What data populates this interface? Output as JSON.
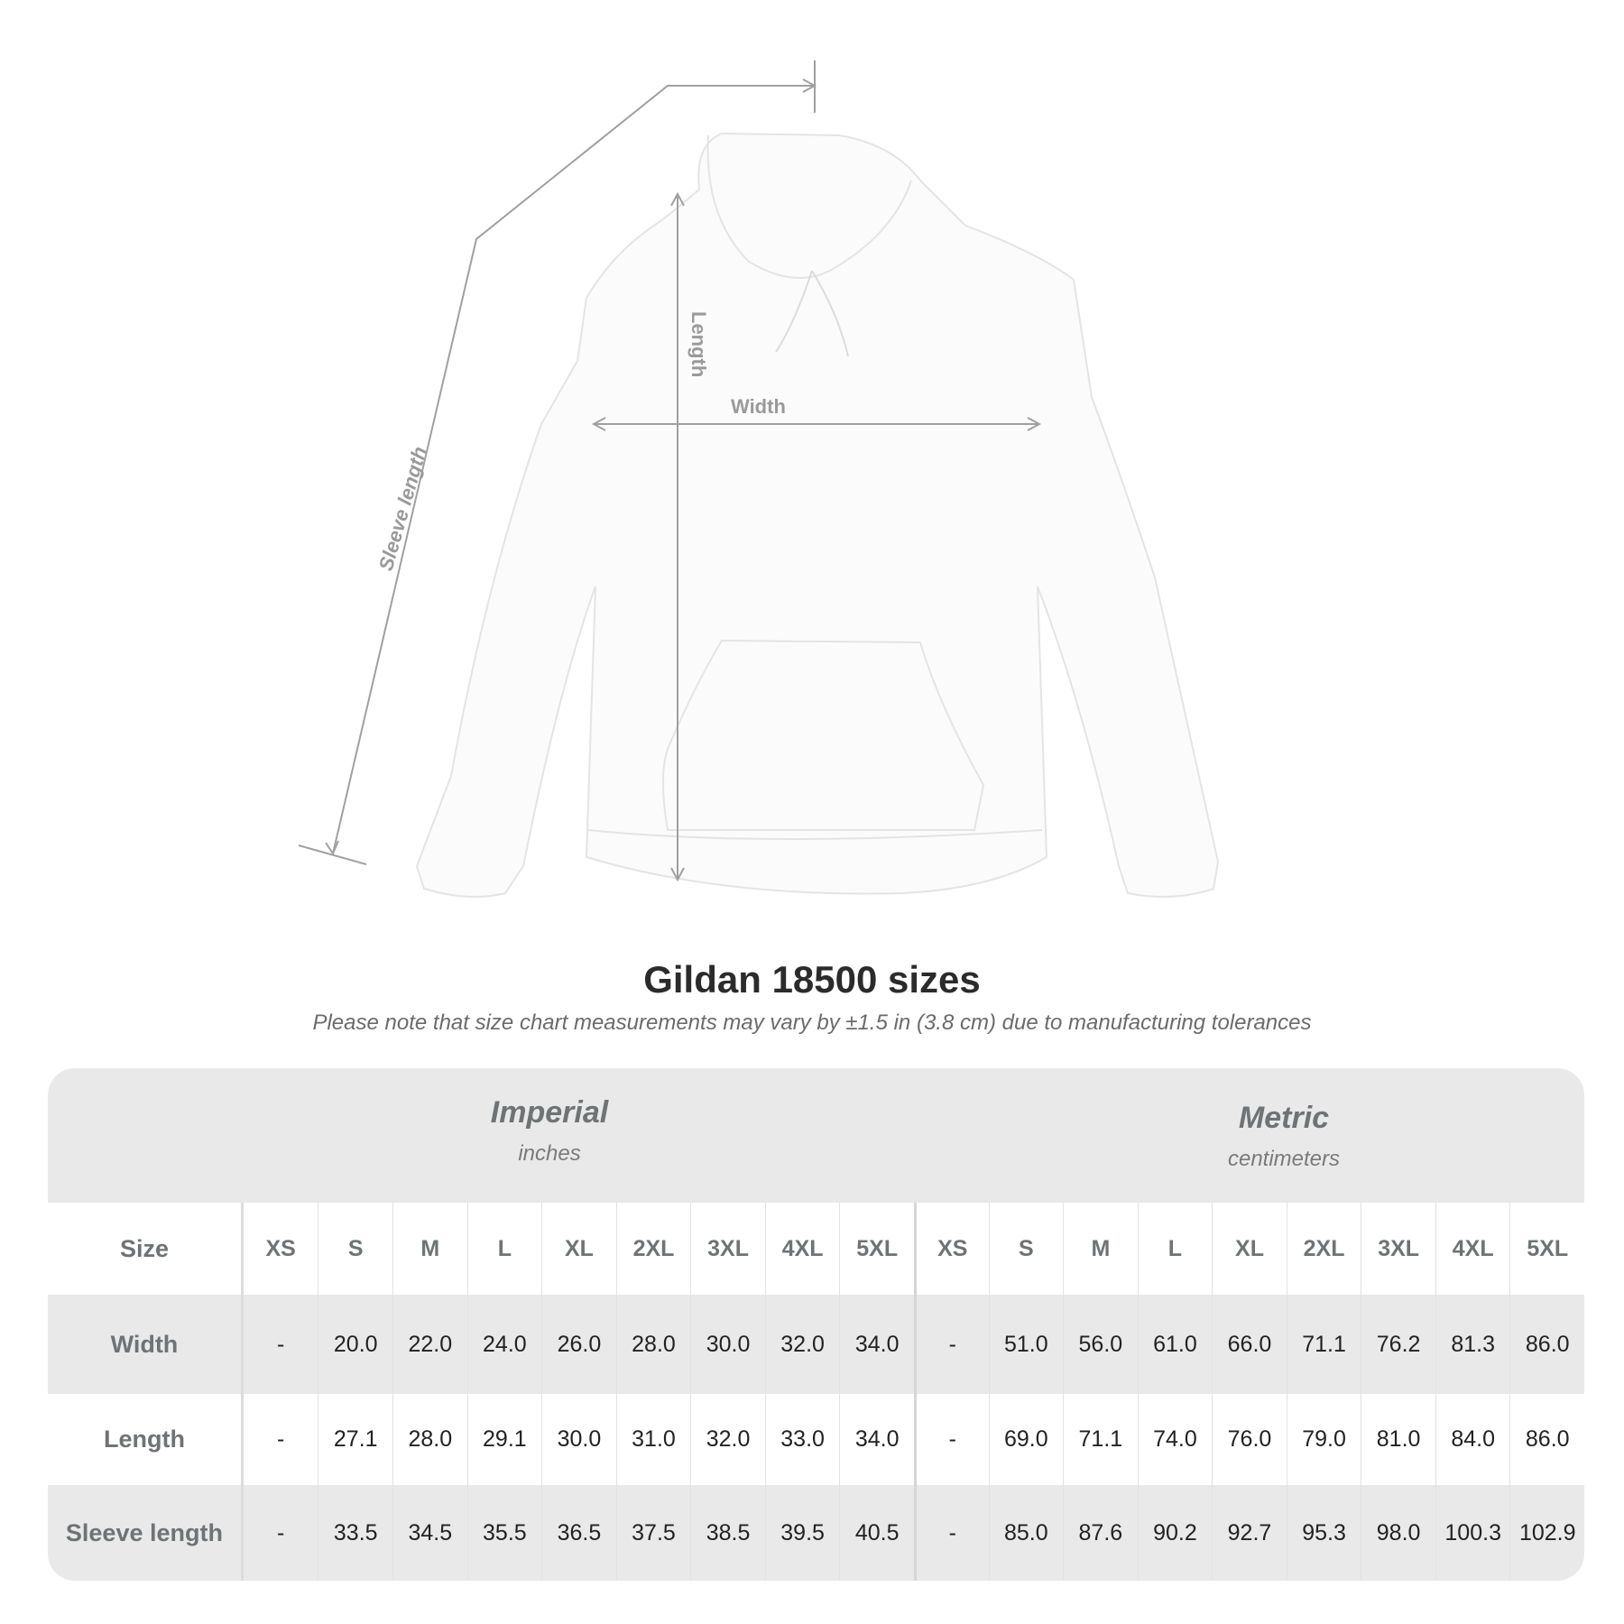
{
  "diagram": {
    "labels": {
      "length": "Length",
      "width": "Width",
      "sleeve": "Sleeve length"
    }
  },
  "title": "Gildan 18500 sizes",
  "note": "Please note that size chart measurements may vary by ±1.5 in (3.8 cm) due to manufacturing tolerances",
  "table": {
    "imperial": {
      "name": "Imperial",
      "unit": "inches"
    },
    "metric": {
      "name": "Metric",
      "unit": "centimeters"
    },
    "size_label": "Size",
    "sizes": [
      "XS",
      "S",
      "M",
      "L",
      "XL",
      "2XL",
      "3XL",
      "4XL",
      "5XL"
    ],
    "rows": [
      {
        "label": "Width",
        "imperial": [
          "-",
          "20.0",
          "22.0",
          "24.0",
          "26.0",
          "28.0",
          "30.0",
          "32.0",
          "34.0"
        ],
        "metric": [
          "-",
          "51.0",
          "56.0",
          "61.0",
          "66.0",
          "71.1",
          "76.2",
          "81.3",
          "86.0"
        ]
      },
      {
        "label": "Length",
        "imperial": [
          "-",
          "27.1",
          "28.0",
          "29.1",
          "30.0",
          "31.0",
          "32.0",
          "33.0",
          "34.0"
        ],
        "metric": [
          "-",
          "69.0",
          "71.1",
          "74.0",
          "76.0",
          "79.0",
          "81.0",
          "84.0",
          "86.0"
        ]
      },
      {
        "label": "Sleeve length",
        "imperial": [
          "-",
          "33.5",
          "34.5",
          "35.5",
          "36.5",
          "37.5",
          "38.5",
          "39.5",
          "40.5"
        ],
        "metric": [
          "-",
          "85.0",
          "87.6",
          "90.2",
          "92.7",
          "95.3",
          "98.0",
          "100.3",
          "102.9"
        ]
      }
    ]
  },
  "colors": {
    "header_gray": "#e9e9e9",
    "label_text": "#6e7375",
    "measure_line": "#a0a0a0"
  }
}
